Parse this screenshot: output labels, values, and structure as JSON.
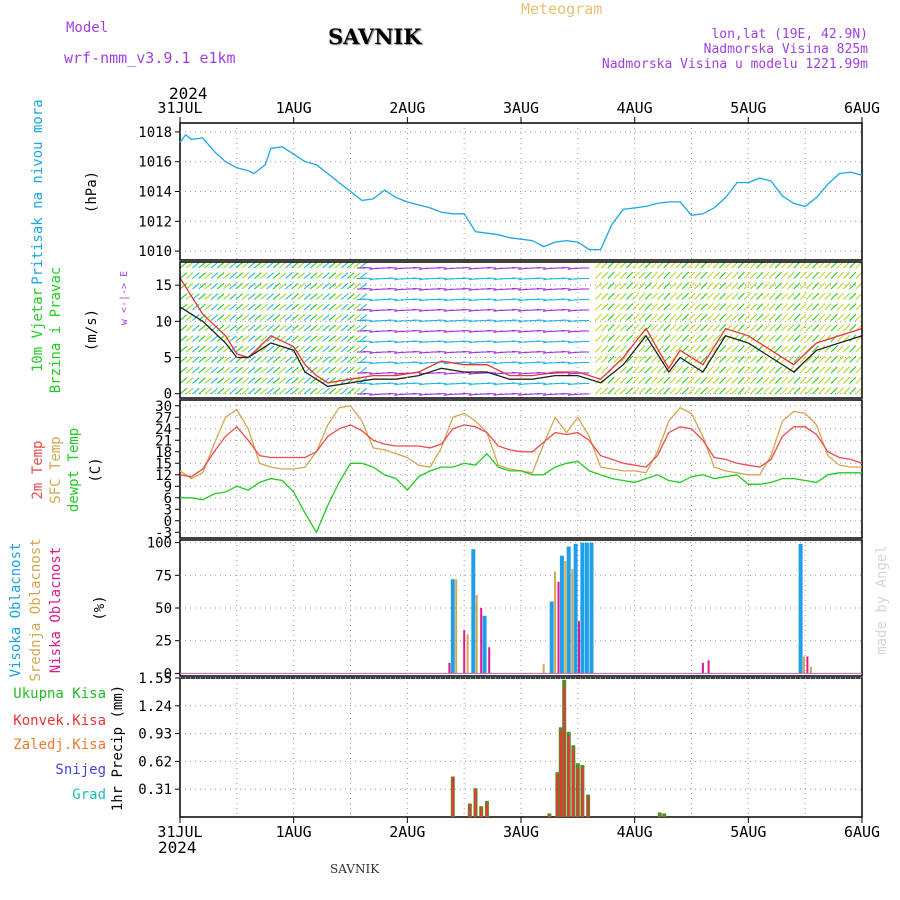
{
  "header": {
    "meteogram_label": "Meteogram",
    "model_label": "Model",
    "model_name": "wrf-nmm_v3.9.1  e1km",
    "location": "SAVNIK",
    "lonlat": "lon,lat (19E, 42.9N)",
    "altitude": "Nadmorska Visina 825m",
    "model_altitude": "Nadmorska Visina u modelu 1221.99m",
    "year": "2024",
    "footer_location": "SAVNIK",
    "credit": "made by Angel"
  },
  "colors": {
    "pressure": "#1aa7e8",
    "temp2m": "#ef4b4b",
    "sfc": "#d4a650",
    "dewpt": "#22cc22",
    "high_cloud": "#1e9fe8",
    "mid_cloud": "#d4a650",
    "low_cloud": "#e01890",
    "total_rain": "#22bb22",
    "conv_rain": "#ee3333",
    "ice": "#f07a30",
    "snow": "#4444dd",
    "hail": "#22bbbb",
    "wind_label": "#22cc22",
    "wind_dir_label": "#a040e0",
    "model_text": "#a040e0",
    "meteogram_text": "#e8c070"
  },
  "chart_data": [
    {
      "type": "line",
      "panel": "pressure",
      "ylabel": "Pritisak na nivou mora",
      "unit": "(hPa)",
      "ylim": [
        1009.4,
        1018.6
      ],
      "yticks": [
        1010,
        1012,
        1014,
        1016,
        1018
      ],
      "grid": true,
      "x_days": [
        0,
        0.05,
        0.1,
        0.2,
        0.3,
        0.4,
        0.5,
        0.6,
        0.65,
        0.75,
        0.8,
        0.9,
        1.0,
        1.1,
        1.2,
        1.3,
        1.4,
        1.5,
        1.6,
        1.7,
        1.8,
        1.9,
        2.0,
        2.1,
        2.2,
        2.3,
        2.4,
        2.5,
        2.6,
        2.7,
        2.8,
        2.9,
        3.0,
        3.1,
        3.2,
        3.3,
        3.4,
        3.5,
        3.6,
        3.7,
        3.8,
        3.9,
        4.0,
        4.1,
        4.2,
        4.3,
        4.4,
        4.5,
        4.6,
        4.7,
        4.8,
        4.9,
        5.0,
        5.1,
        5.2,
        5.3,
        5.4,
        5.5,
        5.6,
        5.7,
        5.8,
        5.9,
        6.0
      ],
      "series": [
        {
          "key": "pressure",
          "values": [
            1017.3,
            1017.8,
            1017.5,
            1017.6,
            1016.7,
            1016.0,
            1015.6,
            1015.4,
            1015.2,
            1015.8,
            1016.9,
            1017.0,
            1016.5,
            1016.0,
            1015.8,
            1015.2,
            1014.6,
            1014.0,
            1013.4,
            1013.5,
            1014.1,
            1013.6,
            1013.3,
            1013.1,
            1012.9,
            1012.6,
            1012.5,
            1012.5,
            1011.3,
            1011.2,
            1011.1,
            1010.9,
            1010.8,
            1010.7,
            1010.3,
            1010.6,
            1010.7,
            1010.6,
            1010.1,
            1010.1,
            1011.8,
            1012.8,
            1012.9,
            1013.0,
            1013.2,
            1013.3,
            1013.3,
            1012.4,
            1012.5,
            1012.9,
            1013.6,
            1014.6,
            1014.6,
            1014.9,
            1014.7,
            1013.7,
            1013.2,
            1013.0,
            1013.6,
            1014.5,
            1015.2,
            1015.3,
            1015.1
          ]
        }
      ]
    },
    {
      "type": "line",
      "panel": "wind",
      "ylabel_line1": "10m  Vjetar",
      "ylabel_line2": "Brzina i Pravac",
      "unit": "(m/s)",
      "direction_key": "w <-|-> E",
      "ylim": [
        -0.6,
        18.2
      ],
      "yticks": [
        0,
        5,
        10,
        15
      ],
      "grid": true,
      "x_days": [
        0,
        0.2,
        0.4,
        0.5,
        0.6,
        0.8,
        1.0,
        1.1,
        1.2,
        1.3,
        1.5,
        1.7,
        1.9,
        2.1,
        2.3,
        2.5,
        2.7,
        2.9,
        3.1,
        3.3,
        3.5,
        3.7,
        3.9,
        4.1,
        4.3,
        4.4,
        4.6,
        4.8,
        5.0,
        5.2,
        5.4,
        5.6,
        5.8,
        6.0
      ],
      "series": [
        {
          "key": "wind_speed",
          "values": [
            12,
            10,
            7,
            5,
            5,
            7,
            6,
            3,
            2,
            1,
            1.5,
            2,
            2,
            2.5,
            3.5,
            3,
            3,
            2,
            2,
            2.5,
            2.5,
            1.5,
            4,
            8,
            3,
            5,
            3,
            8,
            7,
            5,
            3,
            6,
            7,
            8
          ]
        },
        {
          "key": "wind_gust",
          "values": [
            16,
            11,
            8,
            5.5,
            5,
            8,
            6.5,
            4,
            2.5,
            1.5,
            2,
            2.5,
            2.5,
            3,
            4.5,
            4,
            4,
            2.5,
            2.5,
            3,
            3,
            2,
            5,
            9,
            3.5,
            6,
            4,
            9,
            8,
            6,
            4,
            7,
            8,
            9
          ]
        }
      ]
    },
    {
      "type": "line",
      "panel": "temperature",
      "ylabels": [
        "2m Temp",
        "SFC Temp",
        "dewpt Temp"
      ],
      "unit": "(C)",
      "ylim": [
        -4.5,
        31.5
      ],
      "yticks": [
        -3,
        0,
        3,
        6,
        9,
        12,
        15,
        18,
        21,
        24,
        27,
        30
      ],
      "grid": true,
      "x_days": [
        0,
        0.1,
        0.2,
        0.3,
        0.4,
        0.5,
        0.6,
        0.7,
        0.8,
        0.9,
        1.0,
        1.1,
        1.2,
        1.3,
        1.4,
        1.5,
        1.6,
        1.7,
        1.8,
        1.9,
        2.0,
        2.1,
        2.2,
        2.3,
        2.4,
        2.5,
        2.6,
        2.7,
        2.8,
        2.9,
        3.0,
        3.1,
        3.2,
        3.3,
        3.4,
        3.5,
        3.6,
        3.7,
        3.8,
        3.9,
        4.0,
        4.1,
        4.2,
        4.3,
        4.4,
        4.5,
        4.6,
        4.7,
        4.8,
        4.9,
        5.0,
        5.1,
        5.2,
        5.3,
        5.4,
        5.5,
        5.6,
        5.7,
        5.8,
        5.9,
        6.0
      ],
      "series": [
        {
          "key": "temp2m",
          "values": [
            12,
            11.5,
            13.5,
            18,
            22,
            24.5,
            21,
            17,
            16.5,
            16.5,
            16.5,
            16.5,
            18,
            22,
            24,
            25,
            23.5,
            21,
            20,
            19.5,
            19.5,
            19.5,
            19,
            20,
            24,
            25,
            24.5,
            23,
            19.5,
            18.5,
            18,
            18,
            20.5,
            23,
            22.5,
            23,
            21,
            17,
            16,
            15,
            14.5,
            14,
            17,
            23,
            24.5,
            24,
            21,
            16.5,
            16,
            15,
            14.5,
            14,
            16,
            22,
            24.5,
            24.5,
            22.5,
            18,
            16.5,
            16,
            15
          ]
        },
        {
          "key": "sfc",
          "values": [
            13,
            11,
            12.5,
            20,
            27,
            29,
            24,
            15,
            14,
            13.5,
            13.5,
            14,
            18,
            25,
            29.5,
            30,
            26,
            19,
            18.5,
            17.5,
            16.5,
            14.5,
            14,
            19,
            27,
            28,
            26,
            23,
            14.5,
            13.5,
            13,
            12.5,
            20,
            27,
            23,
            27,
            22,
            14,
            13.5,
            13,
            13,
            12.5,
            18,
            26,
            29.5,
            28,
            22,
            14,
            13,
            12.5,
            12,
            12,
            17,
            26,
            28.5,
            28,
            25,
            17,
            14.5,
            14,
            14
          ]
        },
        {
          "key": "dewpt",
          "values": [
            6,
            6,
            5.5,
            7,
            7.5,
            9,
            8,
            10,
            11,
            10.5,
            7.5,
            2,
            -3,
            4,
            10,
            15,
            15,
            14,
            12,
            11,
            8,
            11.5,
            13,
            14,
            14,
            15,
            14.5,
            17.5,
            14,
            13,
            13,
            12,
            12,
            14,
            15,
            15.5,
            13,
            12,
            11,
            10.5,
            10,
            11,
            12,
            10.5,
            10,
            11.5,
            12,
            11,
            11.5,
            12,
            9.5,
            9.5,
            10,
            11,
            11,
            10.5,
            10,
            12,
            12.5,
            12.5,
            12.5
          ]
        }
      ]
    },
    {
      "type": "bar",
      "panel": "cloud",
      "ylabels": [
        "Visoka Oblacnost",
        "Srednja Oblacnost",
        "Niska Oblacnost"
      ],
      "unit": "(%)",
      "ylim": [
        -2,
        102
      ],
      "yticks": [
        0,
        25,
        50,
        75,
        100
      ],
      "grid": true,
      "bars": [
        {
          "x": 2.37,
          "series": "low",
          "value": 8
        },
        {
          "x": 2.4,
          "series": "high",
          "value": 72
        },
        {
          "x": 2.43,
          "series": "mid",
          "value": 72
        },
        {
          "x": 2.5,
          "series": "low",
          "value": 33
        },
        {
          "x": 2.53,
          "series": "mid",
          "value": 30
        },
        {
          "x": 2.58,
          "series": "high",
          "value": 95
        },
        {
          "x": 2.61,
          "series": "mid",
          "value": 60
        },
        {
          "x": 2.65,
          "series": "low",
          "value": 50
        },
        {
          "x": 2.68,
          "series": "high",
          "value": 44
        },
        {
          "x": 2.72,
          "series": "low",
          "value": 20
        },
        {
          "x": 3.2,
          "series": "mid",
          "value": 7
        },
        {
          "x": 3.27,
          "series": "high",
          "value": 55
        },
        {
          "x": 3.3,
          "series": "mid",
          "value": 78
        },
        {
          "x": 3.33,
          "series": "low",
          "value": 70
        },
        {
          "x": 3.36,
          "series": "high",
          "value": 90
        },
        {
          "x": 3.39,
          "series": "mid",
          "value": 86
        },
        {
          "x": 3.42,
          "series": "high",
          "value": 97
        },
        {
          "x": 3.45,
          "series": "mid",
          "value": 80
        },
        {
          "x": 3.48,
          "series": "high",
          "value": 99
        },
        {
          "x": 3.51,
          "series": "low",
          "value": 40
        },
        {
          "x": 3.54,
          "series": "high",
          "value": 100
        },
        {
          "x": 3.58,
          "series": "high",
          "value": 100
        },
        {
          "x": 3.62,
          "series": "high",
          "value": 100
        },
        {
          "x": 4.6,
          "series": "low",
          "value": 8
        },
        {
          "x": 4.65,
          "series": "low",
          "value": 10
        },
        {
          "x": 5.46,
          "series": "high",
          "value": 99
        },
        {
          "x": 5.49,
          "series": "mid",
          "value": 13
        },
        {
          "x": 5.52,
          "series": "low",
          "value": 13
        },
        {
          "x": 5.55,
          "series": "mid",
          "value": 5
        }
      ]
    },
    {
      "type": "bar",
      "panel": "precipitation",
      "legend": [
        "Ukupna  Kisa",
        "Konvek.Kisa",
        "Zaledj.Kisa",
        "Snijeg",
        "Grad"
      ],
      "ylabel": "1hr Precip (mm)",
      "ylim": [
        0,
        1.55
      ],
      "yticks": [
        0.31,
        0.62,
        0.93,
        1.24,
        1.55
      ],
      "ytick_labels": [
        "0.31",
        "0.62",
        "0.93",
        "1.24",
        "1.55"
      ],
      "grid": true,
      "bars": [
        {
          "x": 2.4,
          "total": 0.45,
          "conv": 0.45
        },
        {
          "x": 2.55,
          "total": 0.15,
          "conv": 0.15
        },
        {
          "x": 2.6,
          "total": 0.32,
          "conv": 0.32
        },
        {
          "x": 2.65,
          "total": 0.12,
          "conv": 0.1
        },
        {
          "x": 2.7,
          "total": 0.18,
          "conv": 0.15
        },
        {
          "x": 3.25,
          "total": 0.04,
          "conv": 0.02
        },
        {
          "x": 3.32,
          "total": 0.5,
          "conv": 0.48
        },
        {
          "x": 3.35,
          "total": 1.0,
          "conv": 0.95
        },
        {
          "x": 3.38,
          "total": 1.53,
          "conv": 1.45
        },
        {
          "x": 3.42,
          "total": 0.95,
          "conv": 0.9
        },
        {
          "x": 3.46,
          "total": 0.8,
          "conv": 0.75
        },
        {
          "x": 3.5,
          "total": 0.6,
          "conv": 0.55
        },
        {
          "x": 3.54,
          "total": 0.58,
          "conv": 0.55
        },
        {
          "x": 3.59,
          "total": 0.25,
          "conv": 0.22
        },
        {
          "x": 4.22,
          "total": 0.05,
          "conv": 0.0
        },
        {
          "x": 4.26,
          "total": 0.04,
          "conv": 0.0
        }
      ]
    }
  ],
  "x_axis": {
    "date_labels": [
      "31JUL",
      "1AUG",
      "2AUG",
      "3AUG",
      "4AUG",
      "5AUG",
      "6AUG"
    ]
  }
}
